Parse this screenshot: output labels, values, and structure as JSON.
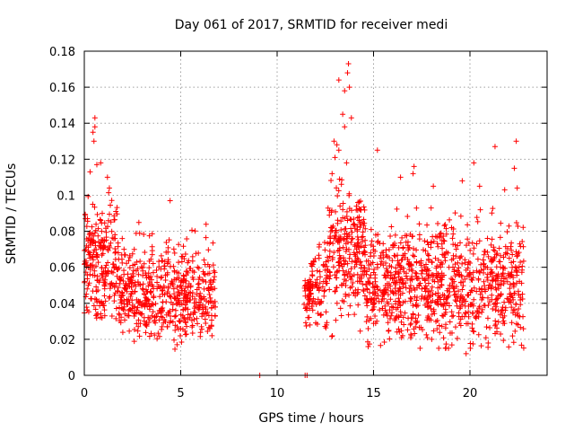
{
  "chart_data": {
    "type": "scatter",
    "title": "Day 061 of 2017, SRMTID for receiver medi",
    "xlabel": "GPS time / hours",
    "ylabel": "SRMTID / TECUs",
    "xlim": [
      0,
      24
    ],
    "ylim": [
      0,
      0.18
    ],
    "x_ticks": [
      0,
      5,
      10,
      15,
      20
    ],
    "x_tick_labels": [
      "0",
      "5",
      "10",
      "15",
      "20"
    ],
    "y_ticks": [
      0,
      0.02,
      0.04,
      0.06,
      0.08,
      0.1,
      0.12,
      0.14,
      0.16,
      0.18
    ],
    "y_tick_labels": [
      "0",
      "0.02",
      "0.04",
      "0.06",
      "0.08",
      "0.1",
      "0.12",
      "0.14",
      "0.16",
      "0.18"
    ],
    "grid": true,
    "marker": "+",
    "series_color": "#ff0000",
    "series": [
      {
        "name": "SRMTID",
        "segments": [
          {
            "x_start": 0.0,
            "x_end": 1.8,
            "y_min": 0.025,
            "y_max": 0.105,
            "center": 0.062,
            "count": 240
          },
          {
            "x_start": 1.8,
            "x_end": 6.8,
            "y_min": 0.017,
            "y_max": 0.085,
            "center": 0.045,
            "count": 560
          },
          {
            "x_start": 11.4,
            "x_end": 12.6,
            "y_min": 0.022,
            "y_max": 0.08,
            "center": 0.048,
            "count": 120
          },
          {
            "x_start": 12.6,
            "x_end": 14.6,
            "y_min": 0.02,
            "y_max": 0.11,
            "center": 0.07,
            "count": 260
          },
          {
            "x_start": 14.6,
            "x_end": 22.8,
            "y_min": 0.015,
            "y_max": 0.095,
            "center": 0.05,
            "count": 950
          }
        ],
        "peaks": [
          {
            "x": 0.55,
            "y": 0.143
          },
          {
            "x": 0.55,
            "y": 0.138
          },
          {
            "x": 0.5,
            "y": 0.13
          },
          {
            "x": 0.45,
            "y": 0.135
          },
          {
            "x": 0.65,
            "y": 0.117
          },
          {
            "x": 0.85,
            "y": 0.118
          },
          {
            "x": 0.3,
            "y": 0.113
          },
          {
            "x": 1.2,
            "y": 0.11
          },
          {
            "x": 1.3,
            "y": 0.104
          },
          {
            "x": 4.45,
            "y": 0.097
          },
          {
            "x": 13.2,
            "y": 0.164
          },
          {
            "x": 13.5,
            "y": 0.158
          },
          {
            "x": 13.7,
            "y": 0.173
          },
          {
            "x": 13.65,
            "y": 0.168
          },
          {
            "x": 13.75,
            "y": 0.16
          },
          {
            "x": 13.4,
            "y": 0.145
          },
          {
            "x": 13.5,
            "y": 0.138
          },
          {
            "x": 13.85,
            "y": 0.143
          },
          {
            "x": 12.95,
            "y": 0.13
          },
          {
            "x": 13.1,
            "y": 0.128
          },
          {
            "x": 13.2,
            "y": 0.125
          },
          {
            "x": 13.0,
            "y": 0.121
          },
          {
            "x": 13.6,
            "y": 0.118
          },
          {
            "x": 12.85,
            "y": 0.112
          },
          {
            "x": 15.2,
            "y": 0.125
          },
          {
            "x": 16.4,
            "y": 0.11
          },
          {
            "x": 17.1,
            "y": 0.116
          },
          {
            "x": 17.05,
            "y": 0.112
          },
          {
            "x": 18.1,
            "y": 0.105
          },
          {
            "x": 19.6,
            "y": 0.108
          },
          {
            "x": 20.2,
            "y": 0.118
          },
          {
            "x": 20.5,
            "y": 0.105
          },
          {
            "x": 21.3,
            "y": 0.127
          },
          {
            "x": 22.4,
            "y": 0.13
          },
          {
            "x": 22.3,
            "y": 0.115
          },
          {
            "x": 22.45,
            "y": 0.104
          },
          {
            "x": 21.8,
            "y": 0.103
          },
          {
            "x": 4.7,
            "y": 0.0145
          },
          {
            "x": 19.8,
            "y": 0.012
          }
        ],
        "zeros": [
          {
            "x": 9.1,
            "y": 0.0
          },
          {
            "x": 11.45,
            "y": 0.0
          },
          {
            "x": 11.55,
            "y": 0.0
          }
        ]
      }
    ]
  }
}
